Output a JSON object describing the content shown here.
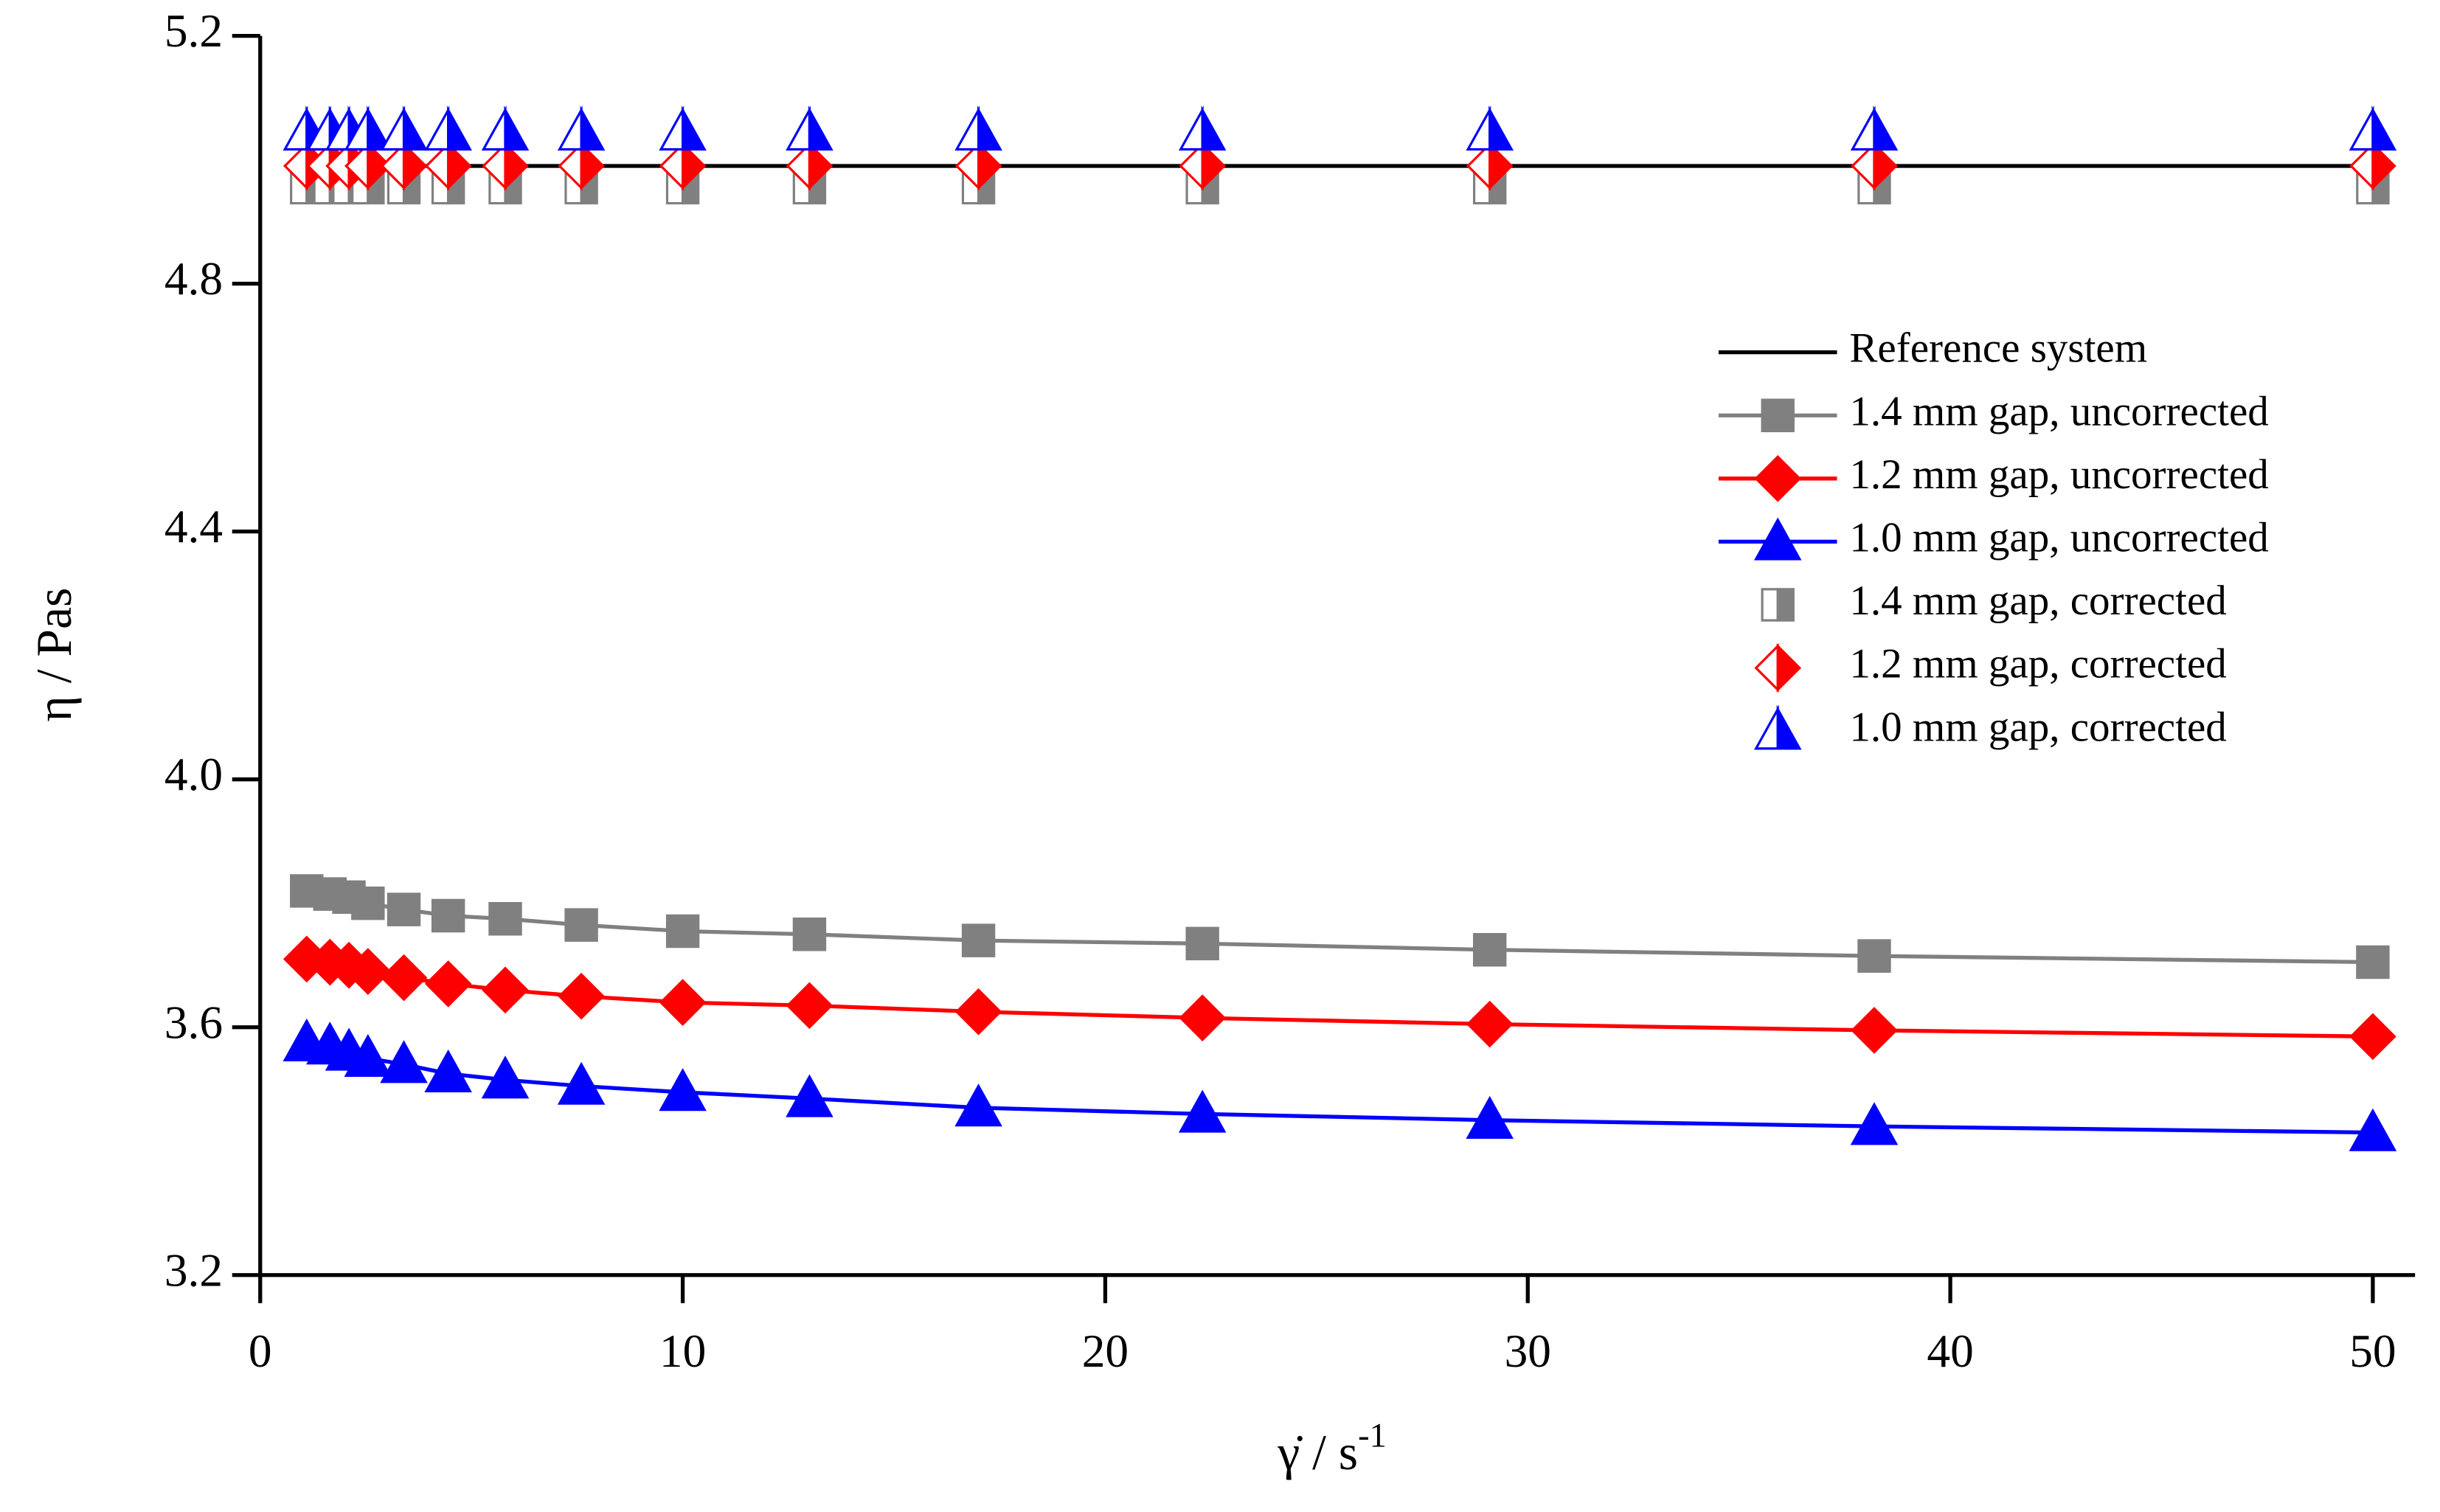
{
  "chart_data": {
    "type": "line",
    "x_label": "γ̇ / s",
    "x_label_sup": "-1",
    "y_label": "η / Pas",
    "x": [
      1.1,
      1.65,
      2.1,
      2.55,
      3.4,
      4.45,
      5.8,
      7.6,
      10,
      13,
      17,
      22.3,
      29.1,
      38.2,
      50
    ],
    "series": [
      {
        "name": "Reference system",
        "color": "#000000",
        "line": true,
        "marker": null,
        "fill": null,
        "values": [
          4.99,
          4.99,
          4.99,
          4.99,
          4.99,
          4.99,
          4.99,
          4.99,
          4.99,
          4.99,
          4.99,
          4.99,
          4.99,
          4.99,
          4.99
        ]
      },
      {
        "name": "1.4 mm gap, uncorrected",
        "color": "#808080",
        "line": true,
        "marker": "square",
        "fill": "full",
        "values": [
          3.82,
          3.815,
          3.81,
          3.8,
          3.79,
          3.78,
          3.775,
          3.765,
          3.755,
          3.75,
          3.74,
          3.735,
          3.725,
          3.715,
          3.705
        ]
      },
      {
        "name": "1.2 mm gap, uncorrected",
        "color": "#ff0000",
        "line": true,
        "marker": "diamond",
        "fill": "full",
        "values": [
          3.71,
          3.705,
          3.7,
          3.69,
          3.68,
          3.67,
          3.66,
          3.65,
          3.64,
          3.635,
          3.625,
          3.615,
          3.605,
          3.595,
          3.585
        ]
      },
      {
        "name": "1.0 mm gap, uncorrected",
        "color": "#0000ff",
        "line": true,
        "marker": "triangle",
        "fill": "full",
        "values": [
          3.575,
          3.57,
          3.56,
          3.55,
          3.54,
          3.525,
          3.515,
          3.505,
          3.495,
          3.485,
          3.47,
          3.46,
          3.45,
          3.44,
          3.43
        ]
      },
      {
        "name": "1.4 mm gap, corrected",
        "color": "#808080",
        "line": false,
        "marker": "square",
        "fill": "half",
        "values": [
          4.955,
          4.955,
          4.955,
          4.955,
          4.955,
          4.955,
          4.955,
          4.955,
          4.955,
          4.955,
          4.955,
          4.955,
          4.955,
          4.955,
          4.955
        ]
      },
      {
        "name": "1.2 mm gap, corrected",
        "color": "#ff0000",
        "line": false,
        "marker": "diamond",
        "fill": "half",
        "values": [
          4.99,
          4.99,
          4.99,
          4.99,
          4.99,
          4.99,
          4.99,
          4.99,
          4.99,
          4.99,
          4.99,
          4.99,
          4.99,
          4.99,
          4.99
        ]
      },
      {
        "name": "1.0 mm gap, corrected",
        "color": "#0000ff",
        "line": false,
        "marker": "triangle",
        "fill": "half",
        "values": [
          5.045,
          5.045,
          5.045,
          5.045,
          5.045,
          5.045,
          5.045,
          5.045,
          5.045,
          5.045,
          5.045,
          5.045,
          5.045,
          5.045,
          5.045
        ]
      }
    ],
    "xlim": [
      0,
      51
    ],
    "ylim": [
      3.2,
      5.2
    ],
    "xticks": [
      0,
      10,
      20,
      30,
      40,
      50
    ],
    "yticks": [
      3.2,
      3.6,
      {
        "value": 4,
        "label": "4.0"
      },
      4.4,
      4.8,
      5.2
    ],
    "grid": false,
    "legend": "upper right"
  }
}
